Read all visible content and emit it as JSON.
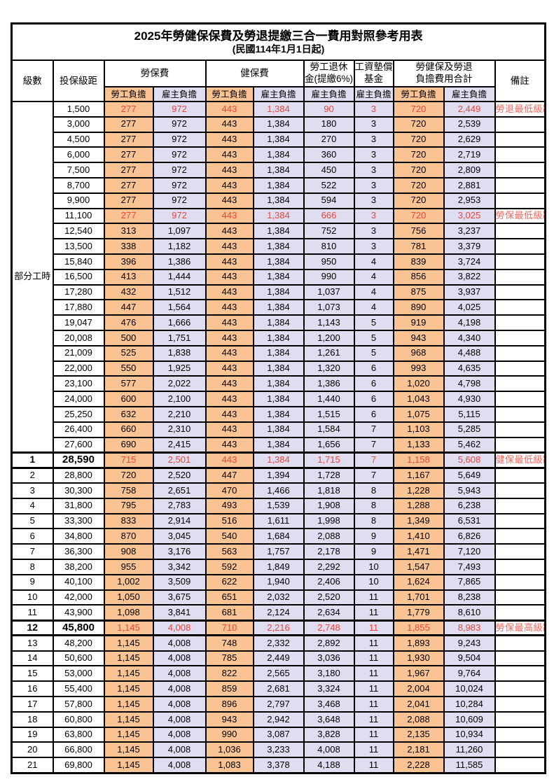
{
  "title": "2025年勞健保保費及勞退提繳三合一費用對照參考用表",
  "subtitle": "(民國114年1月1日起)",
  "colors": {
    "employee_bg": "#FAC394",
    "employer_bg": "#DFDDEF",
    "highlight_red": "#E8473F",
    "remark_red": "#ED6A60",
    "border": "#000000"
  },
  "header": {
    "level": "級數",
    "bracket": "投保級距",
    "labor_insurance": "勞保費",
    "health_insurance": "健保費",
    "pension_line1": "勞工退休",
    "pension_line2": "金(提繳6%)",
    "wage_fund_line1": "工資墊償",
    "wage_fund_line2": "基金",
    "total_line1": "勞健保及勞退",
    "total_line2": "負擔費用合計",
    "remark": "備註",
    "employee": "勞工負擔",
    "employer": "雇主負擔"
  },
  "part_time_label": "部分工時",
  "part_time_row_span": 23,
  "columns": [
    {
      "key": "level",
      "style": "level"
    },
    {
      "key": "bracket",
      "style": "bracket"
    },
    {
      "key": "labor_employee",
      "style": "employee"
    },
    {
      "key": "labor_employer",
      "style": "employer"
    },
    {
      "key": "health_employee",
      "style": "employee"
    },
    {
      "key": "health_employer",
      "style": "employer"
    },
    {
      "key": "pension_employer",
      "style": "employer"
    },
    {
      "key": "fund_employer",
      "style": "employer"
    },
    {
      "key": "total_employee",
      "style": "employee"
    },
    {
      "key": "total_employer",
      "style": "employer"
    },
    {
      "key": "remark",
      "style": "remark"
    }
  ],
  "rows": [
    {
      "level": "",
      "bracket": "1,500",
      "labor_employee": "277",
      "labor_employer": "972",
      "health_employee": "443",
      "health_employer": "1,384",
      "pension_employer": "90",
      "fund_employer": "3",
      "total_employee": "720",
      "total_employer": "2,449",
      "remark": "勞退最低級距",
      "highlight": true,
      "key_row": false
    },
    {
      "level": "",
      "bracket": "3,000",
      "labor_employee": "277",
      "labor_employer": "972",
      "health_employee": "443",
      "health_employer": "1,384",
      "pension_employer": "180",
      "fund_employer": "3",
      "total_employee": "720",
      "total_employer": "2,539",
      "remark": "",
      "highlight": false,
      "key_row": false
    },
    {
      "level": "",
      "bracket": "4,500",
      "labor_employee": "277",
      "labor_employer": "972",
      "health_employee": "443",
      "health_employer": "1,384",
      "pension_employer": "270",
      "fund_employer": "3",
      "total_employee": "720",
      "total_employer": "2,629",
      "remark": "",
      "highlight": false,
      "key_row": false
    },
    {
      "level": "",
      "bracket": "6,000",
      "labor_employee": "277",
      "labor_employer": "972",
      "health_employee": "443",
      "health_employer": "1,384",
      "pension_employer": "360",
      "fund_employer": "3",
      "total_employee": "720",
      "total_employer": "2,719",
      "remark": "",
      "highlight": false,
      "key_row": false
    },
    {
      "level": "",
      "bracket": "7,500",
      "labor_employee": "277",
      "labor_employer": "972",
      "health_employee": "443",
      "health_employer": "1,384",
      "pension_employer": "450",
      "fund_employer": "3",
      "total_employee": "720",
      "total_employer": "2,809",
      "remark": "",
      "highlight": false,
      "key_row": false
    },
    {
      "level": "",
      "bracket": "8,700",
      "labor_employee": "277",
      "labor_employer": "972",
      "health_employee": "443",
      "health_employer": "1,384",
      "pension_employer": "522",
      "fund_employer": "3",
      "total_employee": "720",
      "total_employer": "2,881",
      "remark": "",
      "highlight": false,
      "key_row": false
    },
    {
      "level": "",
      "bracket": "9,900",
      "labor_employee": "277",
      "labor_employer": "972",
      "health_employee": "443",
      "health_employer": "1,384",
      "pension_employer": "594",
      "fund_employer": "3",
      "total_employee": "720",
      "total_employer": "2,953",
      "remark": "",
      "highlight": false,
      "key_row": false
    },
    {
      "level": "",
      "bracket": "11,100",
      "labor_employee": "277",
      "labor_employer": "972",
      "health_employee": "443",
      "health_employer": "1,384",
      "pension_employer": "666",
      "fund_employer": "3",
      "total_employee": "720",
      "total_employer": "3,025",
      "remark": "勞保最低級距",
      "highlight": true,
      "key_row": false
    },
    {
      "level": "",
      "bracket": "12,540",
      "labor_employee": "313",
      "labor_employer": "1,097",
      "health_employee": "443",
      "health_employer": "1,384",
      "pension_employer": "752",
      "fund_employer": "3",
      "total_employee": "756",
      "total_employer": "3,237",
      "remark": "",
      "highlight": false,
      "key_row": false
    },
    {
      "level": "",
      "bracket": "13,500",
      "labor_employee": "338",
      "labor_employer": "1,182",
      "health_employee": "443",
      "health_employer": "1,384",
      "pension_employer": "810",
      "fund_employer": "3",
      "total_employee": "781",
      "total_employer": "3,379",
      "remark": "",
      "highlight": false,
      "key_row": false
    },
    {
      "level": "",
      "bracket": "15,840",
      "labor_employee": "396",
      "labor_employer": "1,386",
      "health_employee": "443",
      "health_employer": "1,384",
      "pension_employer": "950",
      "fund_employer": "4",
      "total_employee": "839",
      "total_employer": "3,724",
      "remark": "",
      "highlight": false,
      "key_row": false
    },
    {
      "level": "",
      "bracket": "16,500",
      "labor_employee": "413",
      "labor_employer": "1,444",
      "health_employee": "443",
      "health_employer": "1,384",
      "pension_employer": "990",
      "fund_employer": "4",
      "total_employee": "856",
      "total_employer": "3,822",
      "remark": "",
      "highlight": false,
      "key_row": false
    },
    {
      "level": "",
      "bracket": "17,280",
      "labor_employee": "432",
      "labor_employer": "1,512",
      "health_employee": "443",
      "health_employer": "1,384",
      "pension_employer": "1,037",
      "fund_employer": "4",
      "total_employee": "875",
      "total_employer": "3,937",
      "remark": "",
      "highlight": false,
      "key_row": false
    },
    {
      "level": "",
      "bracket": "17,880",
      "labor_employee": "447",
      "labor_employer": "1,564",
      "health_employee": "443",
      "health_employer": "1,384",
      "pension_employer": "1,073",
      "fund_employer": "4",
      "total_employee": "890",
      "total_employer": "4,025",
      "remark": "",
      "highlight": false,
      "key_row": false
    },
    {
      "level": "",
      "bracket": "19,047",
      "labor_employee": "476",
      "labor_employer": "1,666",
      "health_employee": "443",
      "health_employer": "1,384",
      "pension_employer": "1,143",
      "fund_employer": "5",
      "total_employee": "919",
      "total_employer": "4,198",
      "remark": "",
      "highlight": false,
      "key_row": false
    },
    {
      "level": "",
      "bracket": "20,008",
      "labor_employee": "500",
      "labor_employer": "1,751",
      "health_employee": "443",
      "health_employer": "1,384",
      "pension_employer": "1,200",
      "fund_employer": "5",
      "total_employee": "943",
      "total_employer": "4,340",
      "remark": "",
      "highlight": false,
      "key_row": false
    },
    {
      "level": "",
      "bracket": "21,009",
      "labor_employee": "525",
      "labor_employer": "1,838",
      "health_employee": "443",
      "health_employer": "1,384",
      "pension_employer": "1,261",
      "fund_employer": "5",
      "total_employee": "968",
      "total_employer": "4,488",
      "remark": "",
      "highlight": false,
      "key_row": false
    },
    {
      "level": "",
      "bracket": "22,000",
      "labor_employee": "550",
      "labor_employer": "1,925",
      "health_employee": "443",
      "health_employer": "1,384",
      "pension_employer": "1,320",
      "fund_employer": "6",
      "total_employee": "993",
      "total_employer": "4,635",
      "remark": "",
      "highlight": false,
      "key_row": false
    },
    {
      "level": "",
      "bracket": "23,100",
      "labor_employee": "577",
      "labor_employer": "2,022",
      "health_employee": "443",
      "health_employer": "1,384",
      "pension_employer": "1,386",
      "fund_employer": "6",
      "total_employee": "1,020",
      "total_employer": "4,798",
      "remark": "",
      "highlight": false,
      "key_row": false
    },
    {
      "level": "",
      "bracket": "24,000",
      "labor_employee": "600",
      "labor_employer": "2,100",
      "health_employee": "443",
      "health_employer": "1,384",
      "pension_employer": "1,440",
      "fund_employer": "6",
      "total_employee": "1,043",
      "total_employer": "4,930",
      "remark": "",
      "highlight": false,
      "key_row": false
    },
    {
      "level": "",
      "bracket": "25,250",
      "labor_employee": "632",
      "labor_employer": "2,210",
      "health_employee": "443",
      "health_employer": "1,384",
      "pension_employer": "1,515",
      "fund_employer": "6",
      "total_employee": "1,075",
      "total_employer": "5,115",
      "remark": "",
      "highlight": false,
      "key_row": false
    },
    {
      "level": "",
      "bracket": "26,400",
      "labor_employee": "660",
      "labor_employer": "2,310",
      "health_employee": "443",
      "health_employer": "1,384",
      "pension_employer": "1,584",
      "fund_employer": "7",
      "total_employee": "1,103",
      "total_employer": "5,285",
      "remark": "",
      "highlight": false,
      "key_row": false
    },
    {
      "level": "",
      "bracket": "27,600",
      "labor_employee": "690",
      "labor_employer": "2,415",
      "health_employee": "443",
      "health_employer": "1,384",
      "pension_employer": "1,656",
      "fund_employer": "7",
      "total_employee": "1,133",
      "total_employer": "5,462",
      "remark": "",
      "highlight": false,
      "key_row": false
    },
    {
      "level": "1",
      "bracket": "28,590",
      "labor_employee": "715",
      "labor_employer": "2,501",
      "health_employee": "443",
      "health_employer": "1,384",
      "pension_employer": "1,715",
      "fund_employer": "7",
      "total_employee": "1,158",
      "total_employer": "5,608",
      "remark": "健保最低級距",
      "highlight": true,
      "key_row": true
    },
    {
      "level": "2",
      "bracket": "28,800",
      "labor_employee": "720",
      "labor_employer": "2,520",
      "health_employee": "447",
      "health_employer": "1,394",
      "pension_employer": "1,728",
      "fund_employer": "7",
      "total_employee": "1,167",
      "total_employer": "5,649",
      "remark": "",
      "highlight": false,
      "key_row": false
    },
    {
      "level": "3",
      "bracket": "30,300",
      "labor_employee": "758",
      "labor_employer": "2,651",
      "health_employee": "470",
      "health_employer": "1,466",
      "pension_employer": "1,818",
      "fund_employer": "8",
      "total_employee": "1,228",
      "total_employer": "5,943",
      "remark": "",
      "highlight": false,
      "key_row": false
    },
    {
      "level": "4",
      "bracket": "31,800",
      "labor_employee": "795",
      "labor_employer": "2,783",
      "health_employee": "493",
      "health_employer": "1,539",
      "pension_employer": "1,908",
      "fund_employer": "8",
      "total_employee": "1,288",
      "total_employer": "6,238",
      "remark": "",
      "highlight": false,
      "key_row": false
    },
    {
      "level": "5",
      "bracket": "33,300",
      "labor_employee": "833",
      "labor_employer": "2,914",
      "health_employee": "516",
      "health_employer": "1,611",
      "pension_employer": "1,998",
      "fund_employer": "8",
      "total_employee": "1,349",
      "total_employer": "6,531",
      "remark": "",
      "highlight": false,
      "key_row": false
    },
    {
      "level": "6",
      "bracket": "34,800",
      "labor_employee": "870",
      "labor_employer": "3,045",
      "health_employee": "540",
      "health_employer": "1,684",
      "pension_employer": "2,088",
      "fund_employer": "9",
      "total_employee": "1,410",
      "total_employer": "6,826",
      "remark": "",
      "highlight": false,
      "key_row": false
    },
    {
      "level": "7",
      "bracket": "36,300",
      "labor_employee": "908",
      "labor_employer": "3,176",
      "health_employee": "563",
      "health_employer": "1,757",
      "pension_employer": "2,178",
      "fund_employer": "9",
      "total_employee": "1,471",
      "total_employer": "7,120",
      "remark": "",
      "highlight": false,
      "key_row": false
    },
    {
      "level": "8",
      "bracket": "38,200",
      "labor_employee": "955",
      "labor_employer": "3,342",
      "health_employee": "592",
      "health_employer": "1,849",
      "pension_employer": "2,292",
      "fund_employer": "10",
      "total_employee": "1,547",
      "total_employer": "7,493",
      "remark": "",
      "highlight": false,
      "key_row": false
    },
    {
      "level": "9",
      "bracket": "40,100",
      "labor_employee": "1,002",
      "labor_employer": "3,509",
      "health_employee": "622",
      "health_employer": "1,940",
      "pension_employer": "2,406",
      "fund_employer": "10",
      "total_employee": "1,624",
      "total_employer": "7,865",
      "remark": "",
      "highlight": false,
      "key_row": false
    },
    {
      "level": "10",
      "bracket": "42,000",
      "labor_employee": "1,050",
      "labor_employer": "3,675",
      "health_employee": "651",
      "health_employer": "2,032",
      "pension_employer": "2,520",
      "fund_employer": "11",
      "total_employee": "1,701",
      "total_employer": "8,238",
      "remark": "",
      "highlight": false,
      "key_row": false
    },
    {
      "level": "11",
      "bracket": "43,900",
      "labor_employee": "1,098",
      "labor_employer": "3,841",
      "health_employee": "681",
      "health_employer": "2,124",
      "pension_employer": "2,634",
      "fund_employer": "11",
      "total_employee": "1,779",
      "total_employer": "8,610",
      "remark": "",
      "highlight": false,
      "key_row": false
    },
    {
      "level": "12",
      "bracket": "45,800",
      "labor_employee": "1,145",
      "labor_employer": "4,008",
      "health_employee": "710",
      "health_employer": "2,216",
      "pension_employer": "2,748",
      "fund_employer": "11",
      "total_employee": "1,855",
      "total_employer": "8,983",
      "remark": "勞保最高級距",
      "highlight": true,
      "key_row": true
    },
    {
      "level": "13",
      "bracket": "48,200",
      "labor_employee": "1,145",
      "labor_employer": "4,008",
      "health_employee": "748",
      "health_employer": "2,332",
      "pension_employer": "2,892",
      "fund_employer": "11",
      "total_employee": "1,893",
      "total_employer": "9,243",
      "remark": "",
      "highlight": false,
      "key_row": false
    },
    {
      "level": "14",
      "bracket": "50,600",
      "labor_employee": "1,145",
      "labor_employer": "4,008",
      "health_employee": "785",
      "health_employer": "2,449",
      "pension_employer": "3,036",
      "fund_employer": "11",
      "total_employee": "1,930",
      "total_employer": "9,504",
      "remark": "",
      "highlight": false,
      "key_row": false
    },
    {
      "level": "15",
      "bracket": "53,000",
      "labor_employee": "1,145",
      "labor_employer": "4,008",
      "health_employee": "822",
      "health_employer": "2,565",
      "pension_employer": "3,180",
      "fund_employer": "11",
      "total_employee": "1,967",
      "total_employer": "9,764",
      "remark": "",
      "highlight": false,
      "key_row": false
    },
    {
      "level": "16",
      "bracket": "55,400",
      "labor_employee": "1,145",
      "labor_employer": "4,008",
      "health_employee": "859",
      "health_employer": "2,681",
      "pension_employer": "3,324",
      "fund_employer": "11",
      "total_employee": "2,004",
      "total_employer": "10,024",
      "remark": "",
      "highlight": false,
      "key_row": false
    },
    {
      "level": "17",
      "bracket": "57,800",
      "labor_employee": "1,145",
      "labor_employer": "4,008",
      "health_employee": "896",
      "health_employer": "2,797",
      "pension_employer": "3,468",
      "fund_employer": "11",
      "total_employee": "2,041",
      "total_employer": "10,284",
      "remark": "",
      "highlight": false,
      "key_row": false
    },
    {
      "level": "18",
      "bracket": "60,800",
      "labor_employee": "1,145",
      "labor_employer": "4,008",
      "health_employee": "943",
      "health_employer": "2,942",
      "pension_employer": "3,648",
      "fund_employer": "11",
      "total_employee": "2,088",
      "total_employer": "10,609",
      "remark": "",
      "highlight": false,
      "key_row": false
    },
    {
      "level": "19",
      "bracket": "63,800",
      "labor_employee": "1,145",
      "labor_employer": "4,008",
      "health_employee": "990",
      "health_employer": "3,087",
      "pension_employer": "3,828",
      "fund_employer": "11",
      "total_employee": "2,135",
      "total_employer": "10,934",
      "remark": "",
      "highlight": false,
      "key_row": false
    },
    {
      "level": "20",
      "bracket": "66,800",
      "labor_employee": "1,145",
      "labor_employer": "4,008",
      "health_employee": "1,036",
      "health_employer": "3,233",
      "pension_employer": "4,008",
      "fund_employer": "11",
      "total_employee": "2,181",
      "total_employer": "11,260",
      "remark": "",
      "highlight": false,
      "key_row": false
    },
    {
      "level": "21",
      "bracket": "69,800",
      "labor_employee": "1,145",
      "labor_employer": "4,008",
      "health_employee": "1,083",
      "health_employer": "3,378",
      "pension_employer": "4,188",
      "fund_employer": "11",
      "total_employee": "2,228",
      "total_employer": "11,585",
      "remark": "",
      "highlight": false,
      "key_row": false
    }
  ]
}
